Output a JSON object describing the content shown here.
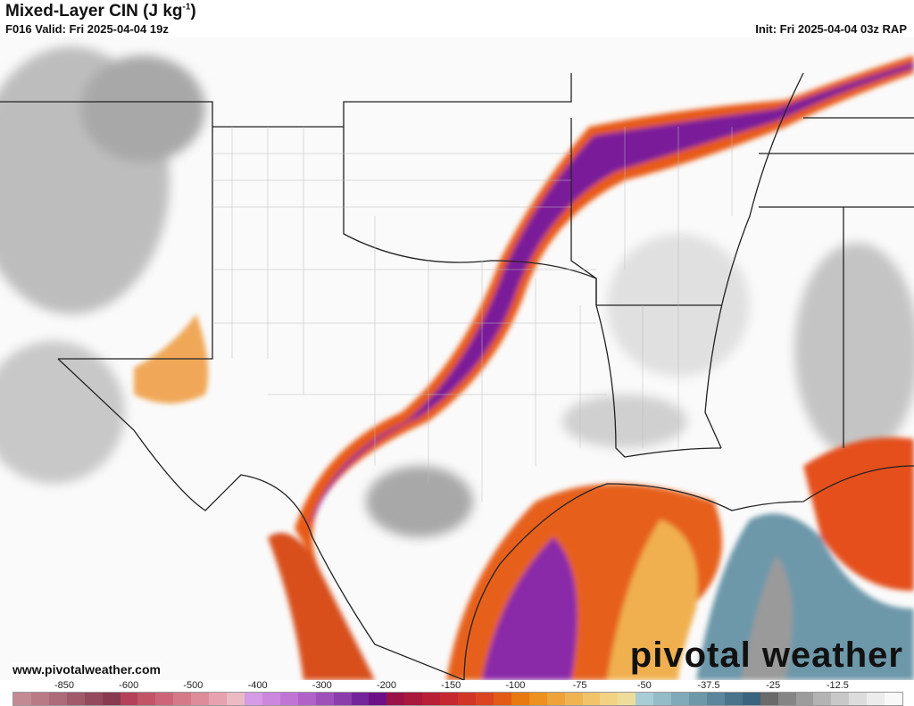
{
  "header": {
    "title": "Mixed-Layer CIN (J kg",
    "title_sup": "-1",
    "title_end": ")",
    "valid": "F016 Valid: Fri 2025-04-04 19z",
    "init": "Init: Fri 2025-04-04 03z RAP"
  },
  "footer": {
    "url": "www.pivotalweather.com",
    "logo": "pivotal weather"
  },
  "colorbar": {
    "labels": [
      "-850",
      "-600",
      "-500",
      "-400",
      "-300",
      "-200",
      "-150",
      "-100",
      "-75",
      "-50",
      "-37.5",
      "-25",
      "-12.5"
    ],
    "colors": [
      "#c48a93",
      "#b97a85",
      "#ad6a78",
      "#a05a6a",
      "#94495c",
      "#883a4f",
      "#b5405a",
      "#c25468",
      "#cc6578",
      "#d57888",
      "#de8c9a",
      "#e6a2ae",
      "#ecbac3",
      "#d69be6",
      "#cc87de",
      "#c074d4",
      "#b062c8",
      "#9f50bb",
      "#8c3dac",
      "#75259b",
      "#6e0f87",
      "#9b1246",
      "#a9183d",
      "#b81f36",
      "#c5282e",
      "#d13526",
      "#da4420",
      "#e35a14",
      "#e87810",
      "#ec901f",
      "#eea23a",
      "#f0b352",
      "#f1c46a",
      "#f2d384",
      "#eedc9a",
      "#a9cdd6",
      "#94bcc8",
      "#80aab9",
      "#6d98aa",
      "#5b869b",
      "#4a748c",
      "#3a637d",
      "#6a6a6a",
      "#858585",
      "#9c9c9c",
      "#b3b3b3",
      "#c8c8c8",
      "#dcdcdc",
      "#ececec",
      "#f8f8f8"
    ]
  }
}
